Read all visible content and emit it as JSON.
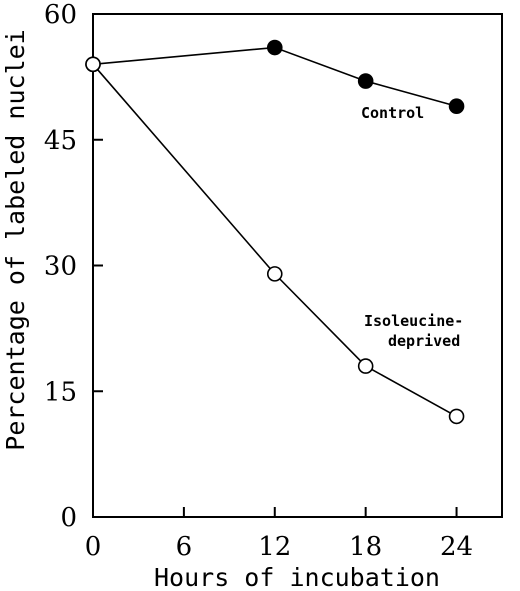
{
  "chart_data": {
    "type": "line",
    "title": "",
    "xlabel": "Hours of incubation",
    "ylabel": "Percentage of labeled nuclei",
    "xlim": [
      0,
      27
    ],
    "ylim": [
      0,
      60
    ],
    "xticks": [
      0,
      6,
      12,
      18,
      24
    ],
    "yticks": [
      0,
      15,
      30,
      45,
      60
    ],
    "grid": false,
    "series": [
      {
        "name": "Control",
        "marker": "filled-circle",
        "color": "#000000",
        "x": [
          0,
          12,
          18,
          24
        ],
        "y": [
          54,
          56,
          52,
          49
        ]
      },
      {
        "name": "Isoleucine-deprived",
        "label_lines": [
          "Isoleucine-",
          "deprived"
        ],
        "marker": "open-circle",
        "color": "#000000",
        "x": [
          0,
          12,
          18,
          24
        ],
        "y": [
          54,
          29,
          18,
          12
        ]
      }
    ]
  }
}
